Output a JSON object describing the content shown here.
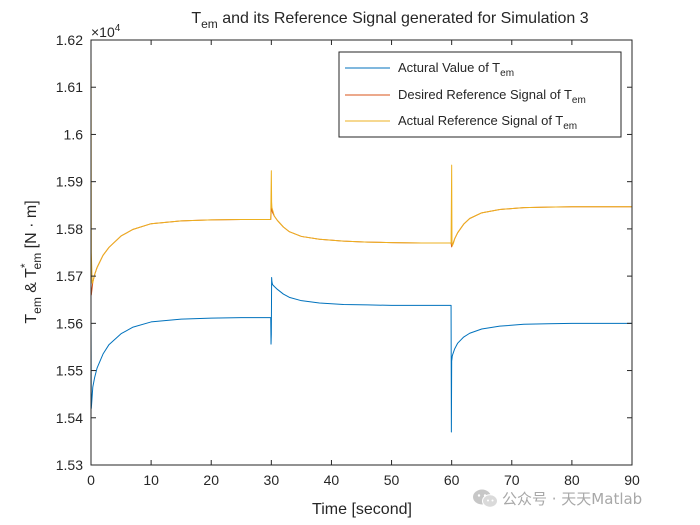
{
  "chart_data": {
    "type": "line",
    "title": {
      "main": "T",
      "sub": "em",
      "rest": " and its Reference Signal generated for Simulation 3"
    },
    "exponent_label": {
      "base": "×10",
      "power": "4"
    },
    "xlabel": "Time [second]",
    "ylabel": {
      "t1": "T",
      "s1": "em",
      "amp": " & T",
      "sup": "*",
      "s2": "em",
      "unit": " [N · m]"
    },
    "xlim": [
      0,
      90
    ],
    "ylim": [
      1.53,
      1.62
    ],
    "y_scale_multiplier": 10000,
    "xticks": [
      0,
      10,
      20,
      30,
      40,
      50,
      60,
      70,
      80,
      90
    ],
    "xtick_labels": [
      "0",
      "10",
      "20",
      "30",
      "40",
      "50",
      "60",
      "70",
      "80",
      "90"
    ],
    "yticks": [
      1.53,
      1.54,
      1.55,
      1.56,
      1.57,
      1.58,
      1.59,
      1.6,
      1.61,
      1.62
    ],
    "ytick_labels": [
      "1.53",
      "1.54",
      "1.55",
      "1.56",
      "1.57",
      "1.58",
      "1.59",
      "1.6",
      "1.61",
      "1.62"
    ],
    "grid": false,
    "legend_position": "top-right",
    "series": [
      {
        "name": "Actural Value of T_em",
        "legend": {
          "text": "Actural Value of T",
          "sub": "em"
        },
        "color": "#0072BD",
        "x": [
          0,
          0.05,
          0.3,
          0.6,
          1,
          2,
          3,
          5,
          7,
          10,
          15,
          20,
          25,
          29.9,
          29.95,
          30,
          30.05,
          30.1,
          30.2,
          30.5,
          31,
          32,
          33,
          35,
          38,
          42,
          46,
          50,
          55,
          59.9,
          59.95,
          60,
          60.05,
          60.1,
          60.2,
          60.5,
          61,
          62,
          63,
          65,
          68,
          72,
          76,
          80,
          85,
          90
        ],
        "y": [
          1.561,
          1.542,
          1.5465,
          1.5485,
          1.5505,
          1.5535,
          1.5555,
          1.5578,
          1.5592,
          1.5603,
          1.5609,
          1.5611,
          1.5612,
          1.5612,
          1.5556,
          1.5577,
          1.5697,
          1.5688,
          1.5682,
          1.5678,
          1.5672,
          1.5662,
          1.5655,
          1.5648,
          1.5643,
          1.564,
          1.5639,
          1.5638,
          1.5638,
          1.5638,
          1.537,
          1.552,
          1.5525,
          1.5531,
          1.5535,
          1.5546,
          1.5558,
          1.5571,
          1.5579,
          1.5588,
          1.5594,
          1.5598,
          1.5599,
          1.56,
          1.56,
          1.56
        ]
      },
      {
        "name": "Desired Reference Signal of T_em",
        "legend": {
          "text": "Desired Reference Signal of T",
          "sub": "em"
        },
        "color": "#D95319",
        "x": [
          0,
          0.05,
          0.3,
          0.6,
          1,
          2,
          3,
          5,
          7,
          10,
          15,
          20,
          25,
          29.9,
          30,
          30.05,
          30.2,
          30.5,
          31,
          32,
          33,
          35,
          38,
          42,
          46,
          50,
          55,
          59.9,
          60,
          60.05,
          60.2,
          60.5,
          61,
          62,
          63,
          65,
          68,
          72,
          76,
          80,
          85,
          90
        ],
        "y": [
          1.568,
          1.566,
          1.5687,
          1.5703,
          1.5718,
          1.5744,
          1.5761,
          1.5785,
          1.5799,
          1.5811,
          1.5817,
          1.5819,
          1.582,
          1.582,
          1.5845,
          1.5842,
          1.5835,
          1.5827,
          1.5818,
          1.5804,
          1.5794,
          1.5784,
          1.5778,
          1.5774,
          1.5772,
          1.5771,
          1.577,
          1.577,
          1.5762,
          1.5764,
          1.5768,
          1.5779,
          1.5792,
          1.581,
          1.5822,
          1.5834,
          1.5841,
          1.5845,
          1.5846,
          1.5847,
          1.5847,
          1.5847
        ]
      },
      {
        "name": "Actual Reference Signal of T_em",
        "legend": {
          "text": "Actual Reference Signal of T",
          "sub": "em"
        },
        "color": "#EDB120",
        "x": [
          0,
          0.01,
          0.05,
          0.2,
          0.3,
          0.6,
          1,
          2,
          3,
          5,
          7,
          10,
          15,
          20,
          25,
          29.9,
          30,
          30.05,
          30.1,
          30.3,
          30.5,
          31,
          32,
          33,
          35,
          38,
          42,
          46,
          50,
          55,
          59.9,
          60,
          60.05,
          60.1,
          60.3,
          60.5,
          61,
          62,
          63,
          65,
          68,
          72,
          76,
          80,
          85,
          90
        ],
        "y": [
          1.568,
          1.615,
          1.575,
          1.5685,
          1.5687,
          1.5703,
          1.5718,
          1.5744,
          1.5761,
          1.5785,
          1.5799,
          1.5811,
          1.5817,
          1.5819,
          1.582,
          1.582,
          1.5923,
          1.5857,
          1.5845,
          1.5836,
          1.5827,
          1.5818,
          1.5804,
          1.5794,
          1.5784,
          1.5778,
          1.5774,
          1.5772,
          1.5771,
          1.577,
          1.577,
          1.5935,
          1.5775,
          1.5764,
          1.577,
          1.5779,
          1.5792,
          1.581,
          1.5822,
          1.5834,
          1.5841,
          1.5845,
          1.5846,
          1.5847,
          1.5847,
          1.5847
        ]
      }
    ]
  },
  "watermark": {
    "text": "公众号 · 天天Matlab",
    "icon": "wechat-icon"
  }
}
